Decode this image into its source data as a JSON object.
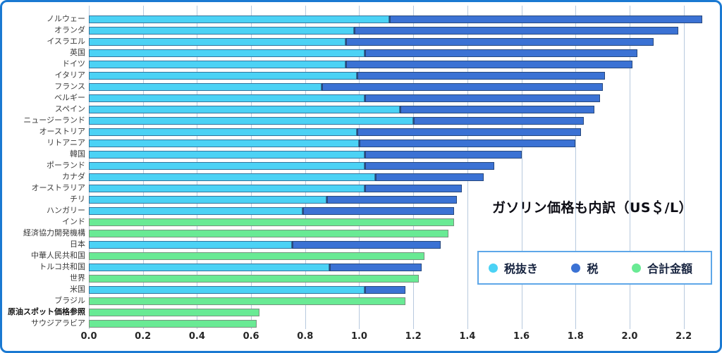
{
  "title": {
    "text": "ガソリン価格も内訳（US＄/L）"
  },
  "legend": {
    "items": [
      {
        "label": "税抜き",
        "color": "#4bd2f5"
      },
      {
        "label": "税",
        "color": "#3b72d4"
      },
      {
        "label": "合計金額",
        "color": "#69ea94"
      }
    ]
  },
  "frame": {
    "border_color": "#1a79d2"
  },
  "chart_data": {
    "type": "bar",
    "orientation": "horizontal",
    "stacked": true,
    "grid": true,
    "title": "ガソリン価格も内訳（US＄/L）",
    "xlabel": "",
    "ylabel": "",
    "x_axis": {
      "min": 0,
      "max": 2.3,
      "tick_step": 0.2,
      "tick_labels": [
        "0.0",
        "0.2",
        "0.4",
        "0.6",
        "0.8",
        "1.0",
        "1.2",
        "1.4",
        "1.6",
        "1.8",
        "2.0",
        "2.2"
      ]
    },
    "legend_entries": [
      "税抜き",
      "税",
      "合計金額"
    ],
    "series_colors": {
      "税抜き": "#4bd2f5",
      "税": "#3b72d4",
      "合計金額": "#69ea94"
    },
    "rows": [
      {
        "label": "ノルウェー",
        "style": "stacked",
        "untaxed": 1.11,
        "tax": 1.16,
        "total": 2.27,
        "bold_label": false
      },
      {
        "label": "オランダ",
        "style": "stacked",
        "untaxed": 0.98,
        "tax": 1.2,
        "total": 2.18,
        "bold_label": false
      },
      {
        "label": "イスラエル",
        "style": "stacked",
        "untaxed": 0.95,
        "tax": 1.14,
        "total": 2.09,
        "bold_label": false
      },
      {
        "label": "英国",
        "style": "stacked",
        "untaxed": 1.02,
        "tax": 1.01,
        "total": 2.03,
        "bold_label": false
      },
      {
        "label": "ドイツ",
        "style": "stacked",
        "untaxed": 0.95,
        "tax": 1.06,
        "total": 2.01,
        "bold_label": false
      },
      {
        "label": "イタリア",
        "style": "stacked",
        "untaxed": 0.99,
        "tax": 0.92,
        "total": 1.91,
        "bold_label": false
      },
      {
        "label": "フランス",
        "style": "stacked",
        "untaxed": 0.86,
        "tax": 1.04,
        "total": 1.9,
        "bold_label": false
      },
      {
        "label": "ベルギー",
        "style": "stacked",
        "untaxed": 1.02,
        "tax": 0.87,
        "total": 1.89,
        "bold_label": false
      },
      {
        "label": "スペイン",
        "style": "stacked",
        "untaxed": 1.15,
        "tax": 0.72,
        "total": 1.87,
        "bold_label": false
      },
      {
        "label": "ニュージーランド",
        "style": "stacked",
        "untaxed": 1.2,
        "tax": 0.63,
        "total": 1.83,
        "bold_label": false
      },
      {
        "label": "オーストリア",
        "style": "stacked",
        "untaxed": 0.99,
        "tax": 0.83,
        "total": 1.82,
        "bold_label": false
      },
      {
        "label": "リトアニア",
        "style": "stacked",
        "untaxed": 1.0,
        "tax": 0.8,
        "total": 1.8,
        "bold_label": false
      },
      {
        "label": "韓国",
        "style": "stacked",
        "untaxed": 1.02,
        "tax": 0.58,
        "total": 1.6,
        "bold_label": false
      },
      {
        "label": "ポーランド",
        "style": "stacked",
        "untaxed": 1.02,
        "tax": 0.48,
        "total": 1.5,
        "bold_label": false
      },
      {
        "label": "カナダ",
        "style": "stacked",
        "untaxed": 1.06,
        "tax": 0.4,
        "total": 1.46,
        "bold_label": false
      },
      {
        "label": "オーストラリア",
        "style": "stacked",
        "untaxed": 1.02,
        "tax": 0.36,
        "total": 1.38,
        "bold_label": false
      },
      {
        "label": "チリ",
        "style": "stacked",
        "untaxed": 0.88,
        "tax": 0.48,
        "total": 1.36,
        "bold_label": false
      },
      {
        "label": "ハンガリー",
        "style": "stacked",
        "untaxed": 0.79,
        "tax": 0.56,
        "total": 1.35,
        "bold_label": false
      },
      {
        "label": "インド",
        "style": "total_only",
        "untaxed": null,
        "tax": null,
        "total": 1.35,
        "bold_label": false
      },
      {
        "label": "経済協力開発機構",
        "style": "total_only",
        "untaxed": null,
        "tax": null,
        "total": 1.33,
        "bold_label": false
      },
      {
        "label": "日本",
        "style": "stacked",
        "untaxed": 0.75,
        "tax": 0.55,
        "total": 1.3,
        "bold_label": false
      },
      {
        "label": "中華人民共和国",
        "style": "total_only",
        "untaxed": null,
        "tax": null,
        "total": 1.24,
        "bold_label": false
      },
      {
        "label": "トルコ共和国",
        "style": "stacked",
        "untaxed": 0.89,
        "tax": 0.34,
        "total": 1.23,
        "bold_label": false
      },
      {
        "label": "世界",
        "style": "total_only",
        "untaxed": null,
        "tax": null,
        "total": 1.22,
        "bold_label": false
      },
      {
        "label": "米国",
        "style": "stacked",
        "untaxed": 1.02,
        "tax": 0.15,
        "total": 1.17,
        "bold_label": false
      },
      {
        "label": "ブラジル",
        "style": "total_only",
        "untaxed": null,
        "tax": null,
        "total": 1.17,
        "bold_label": false
      },
      {
        "label": "原油スポット価格参照",
        "style": "total_only",
        "untaxed": null,
        "tax": null,
        "total": 0.63,
        "bold_label": true
      },
      {
        "label": "サウジアラビア",
        "style": "total_only",
        "untaxed": null,
        "tax": null,
        "total": 0.62,
        "bold_label": false
      }
    ]
  }
}
